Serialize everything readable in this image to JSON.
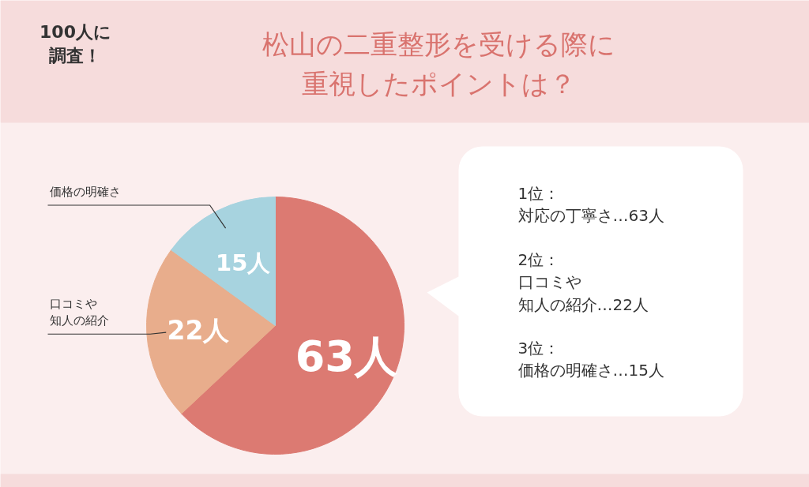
{
  "chart_data": {
    "type": "pie",
    "title": "松山の二重整形を受ける際に重視したポイントは？",
    "categories": [
      null,
      "口コミや知人の紹介",
      "価格の明確さ"
    ],
    "values": [
      63,
      22,
      15
    ],
    "value_labels": [
      "63人",
      "22人",
      "15人"
    ],
    "colors": [
      "#dc7a72",
      "#e8ad8c",
      "#a7d3df"
    ],
    "annotations": [
      "100人に調査！",
      "1位：対応の丁寧さ…63人",
      "2位：口コミや知人の紹介…22人",
      "3位：価格の明確さ…15人"
    ]
  }
}
